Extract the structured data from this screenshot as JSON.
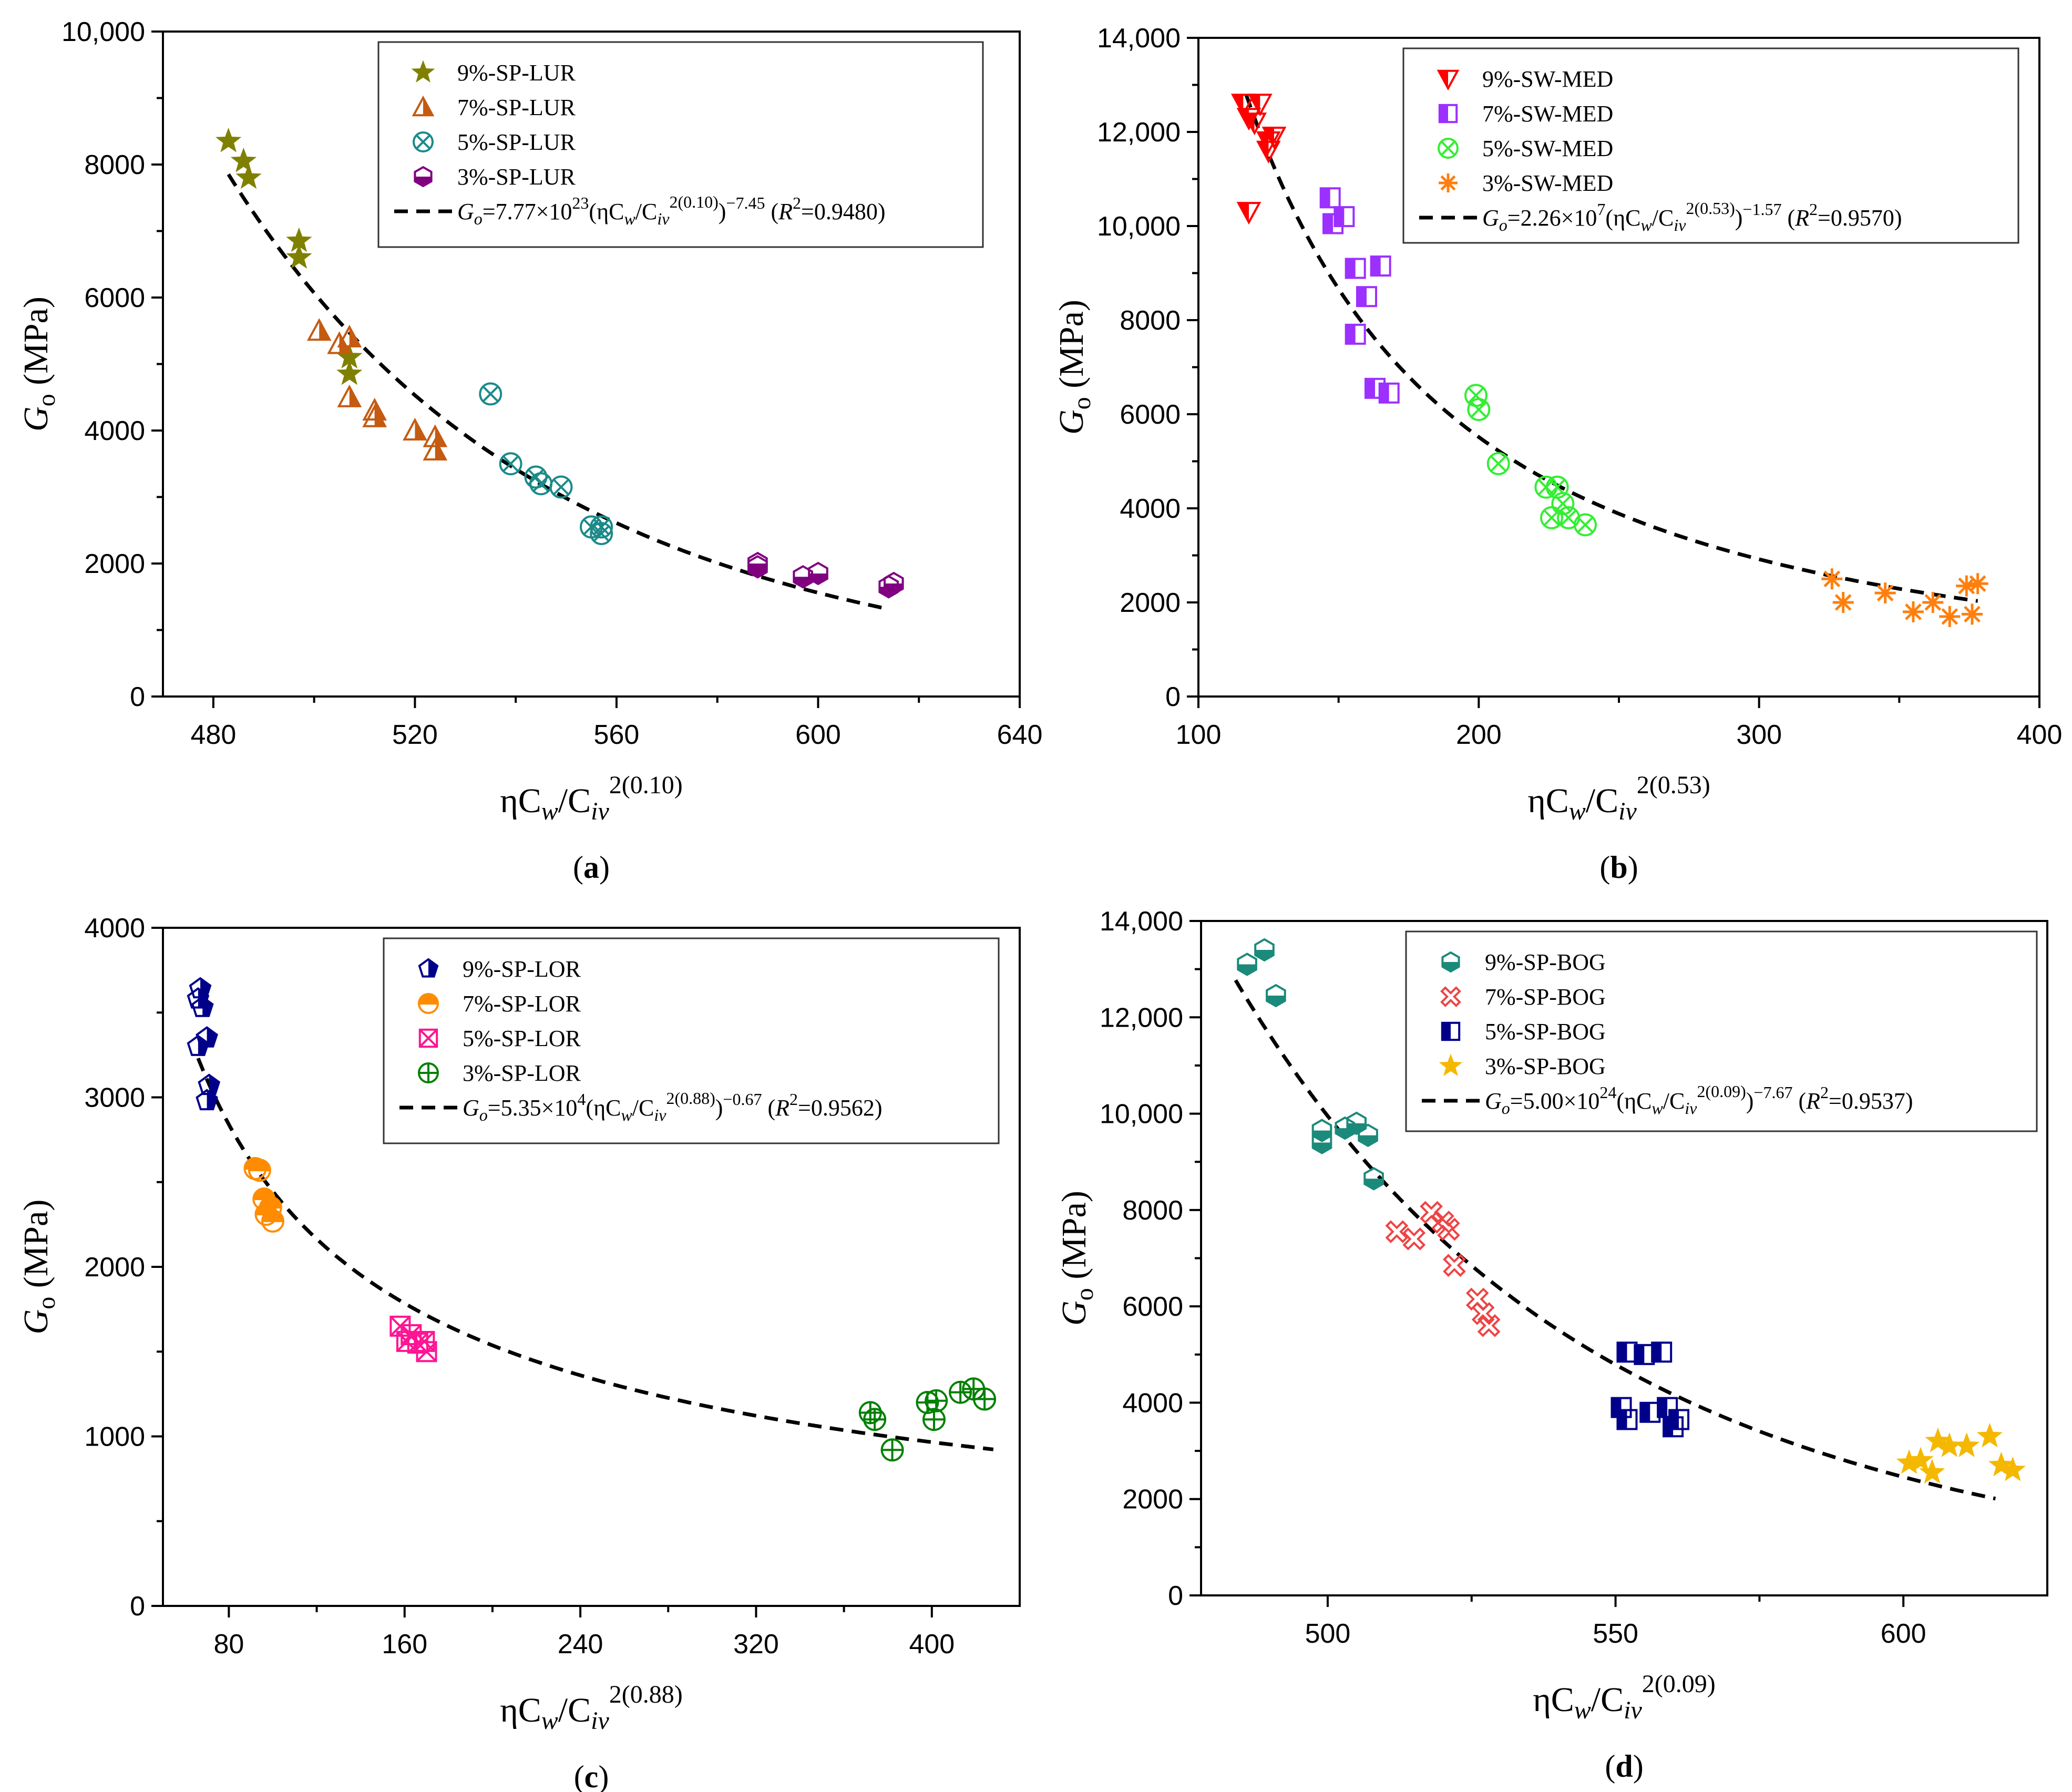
{
  "chart_data": [
    {
      "panel": "(a)",
      "type": "scatter",
      "xlabel": "ηCw/Civ^2(0.10)",
      "ylabel": "Go (MPa)",
      "xlim": [
        470,
        640
      ],
      "ylim": [
        0,
        10000
      ],
      "xticks": [
        480,
        520,
        560,
        600,
        640
      ],
      "xtick_labels": [
        "480",
        "520",
        "560",
        "600",
        "640"
      ],
      "yticks": [
        0,
        2000,
        4000,
        6000,
        8000,
        10000
      ],
      "ytick_labels": [
        "0",
        "2000",
        "4000",
        "6000",
        "8000",
        "10,000"
      ],
      "legend_position": "top-right",
      "fit": {
        "a": 7.77e+23,
        "b": -7.45,
        "x_range": [
          483,
          614
        ],
        "label_a": "7.77×10",
        "label_exp": "23",
        "label_inner": "0.10",
        "label_pow": "−7.45",
        "label_r2": "0.9480"
      },
      "series": [
        {
          "name": "9%-SP-LUR",
          "marker": "star",
          "color": "#808000",
          "points": [
            [
              483,
              8350
            ],
            [
              486,
              8050
            ],
            [
              487,
              7800
            ],
            [
              497,
              6850
            ],
            [
              497,
              6600
            ],
            [
              507,
              5100
            ],
            [
              507,
              4850
            ]
          ]
        },
        {
          "name": "7%-SP-LUR",
          "marker": "triangle-half",
          "color": "#c55a11",
          "points": [
            [
              501,
              5500
            ],
            [
              505,
              5300
            ],
            [
              507,
              5400
            ],
            [
              507,
              4500
            ],
            [
              512,
              4300
            ],
            [
              512,
              4200
            ],
            [
              520,
              4000
            ],
            [
              524,
              3900
            ],
            [
              524,
              3700
            ]
          ]
        },
        {
          "name": "5%-SP-LUR",
          "marker": "circle-x",
          "color": "#1b8a8a",
          "points": [
            [
              535,
              4550
            ],
            [
              539,
              3500
            ],
            [
              544,
              3300
            ],
            [
              545,
              3200
            ],
            [
              549,
              3150
            ],
            [
              555,
              2550
            ],
            [
              557,
              2550
            ],
            [
              557,
              2450
            ]
          ]
        },
        {
          "name": "3%-SP-LUR",
          "marker": "hexagon-half",
          "color": "#800080",
          "points": [
            [
              588,
              2000
            ],
            [
              588,
              1950
            ],
            [
              597,
              1800
            ],
            [
              600,
              1850
            ],
            [
              614,
              1650
            ],
            [
              615,
              1700
            ]
          ]
        }
      ]
    },
    {
      "panel": "(b)",
      "type": "scatter",
      "xlabel": "ηCw/Civ^2(0.53)",
      "ylabel": "Go (MPa)",
      "xlim": [
        100,
        400
      ],
      "ylim": [
        0,
        14000
      ],
      "xticks": [
        100,
        200,
        300,
        400
      ],
      "xtick_labels": [
        "100",
        "200",
        "300",
        "400"
      ],
      "yticks": [
        0,
        2000,
        4000,
        6000,
        8000,
        10000,
        12000,
        14000
      ],
      "ytick_labels": [
        "0",
        "2000",
        "4000",
        "6000",
        "8000",
        "10,000",
        "12,000",
        "14,000"
      ],
      "legend_position": "top-right",
      "fit": {
        "a": 22600000.0,
        "b": -1.57,
        "x_range": [
          117,
          378
        ],
        "label_a": "2.26×10",
        "label_exp": "7",
        "label_inner": "0.53",
        "label_pow": "−1.57",
        "label_r2": "0.9570"
      },
      "series": [
        {
          "name": "9%-SW-MED",
          "marker": "triangle-down-half",
          "color": "#ff0000",
          "points": [
            [
              116,
              12600
            ],
            [
              118,
              12300
            ],
            [
              120,
              12200
            ],
            [
              122,
              12600
            ],
            [
              125,
              11800
            ],
            [
              125,
              11600
            ],
            [
              127,
              11900
            ],
            [
              118,
              10300
            ]
          ]
        },
        {
          "name": "7%-SW-MED",
          "marker": "square-half",
          "color": "#9b30ff",
          "points": [
            [
              147,
              10600
            ],
            [
              148,
              10050
            ],
            [
              152,
              10200
            ],
            [
              156,
              9100
            ],
            [
              160,
              8500
            ],
            [
              165,
              9150
            ],
            [
              156,
              7700
            ],
            [
              163,
              6550
            ],
            [
              168,
              6450
            ]
          ]
        },
        {
          "name": "5%-SW-MED",
          "marker": "circle-x",
          "color": "#33ee33",
          "points": [
            [
              199,
              6400
            ],
            [
              200,
              6100
            ],
            [
              207,
              4950
            ],
            [
              224,
              4450
            ],
            [
              228,
              4450
            ],
            [
              226,
              3800
            ],
            [
              232,
              3800
            ],
            [
              230,
              4100
            ],
            [
              238,
              3650
            ]
          ]
        },
        {
          "name": "3%-SW-MED",
          "marker": "asterisk",
          "color": "#ff7f0e",
          "points": [
            [
              326,
              2500
            ],
            [
              330,
              2000
            ],
            [
              345,
              2200
            ],
            [
              355,
              1800
            ],
            [
              362,
              2000
            ],
            [
              368,
              1700
            ],
            [
              374,
              2350
            ],
            [
              376,
              1750
            ],
            [
              378,
              2400
            ]
          ]
        }
      ]
    },
    {
      "panel": "(c)",
      "type": "scatter",
      "xlabel": "ηCw/Civ^2(0.88)",
      "ylabel": "Go (MPa)",
      "xlim": [
        50,
        440
      ],
      "ylim": [
        0,
        4000
      ],
      "xticks": [
        80,
        160,
        240,
        320,
        400
      ],
      "xtick_labels": [
        "80",
        "160",
        "240",
        "320",
        "400"
      ],
      "yticks": [
        0,
        1000,
        2000,
        3000,
        4000
      ],
      "ytick_labels": [
        "0",
        "1000",
        "2000",
        "3000",
        "4000"
      ],
      "legend_position": "top-right",
      "fit": {
        "a": 53500.0,
        "b": -0.67,
        "x_range": [
          66,
          428
        ],
        "label_a": "5.35×10",
        "label_exp": "4",
        "label_inner": "0.88",
        "label_pow": "−0.67",
        "label_r2": "0.9562"
      },
      "series": [
        {
          "name": "9%-SP-LOR",
          "marker": "pentagon-half",
          "color": "#00008b",
          "points": [
            [
              66,
              3580
            ],
            [
              67,
              3640
            ],
            [
              68,
              3530
            ],
            [
              70,
              3350
            ],
            [
              66,
              3300
            ],
            [
              71,
              3070
            ],
            [
              70,
              2980
            ]
          ]
        },
        {
          "name": "7%-SP-LOR",
          "marker": "circle-half",
          "color": "#ff8c00",
          "points": [
            [
              92,
              2580
            ],
            [
              94,
              2570
            ],
            [
              96,
              2400
            ],
            [
              97,
              2310
            ],
            [
              99,
              2350
            ],
            [
              100,
              2270
            ]
          ]
        },
        {
          "name": "5%-SP-LOR",
          "marker": "square-x",
          "color": "#ff1493",
          "points": [
            [
              158,
              1650
            ],
            [
              161,
              1560
            ],
            [
              163,
              1600
            ],
            [
              166,
              1550
            ],
            [
              169,
              1560
            ],
            [
              170,
              1500
            ]
          ]
        },
        {
          "name": "3%-SP-LOR",
          "marker": "circle-plus",
          "color": "#008000",
          "points": [
            [
              372,
              1140
            ],
            [
              374,
              1100
            ],
            [
              382,
              920
            ],
            [
              398,
              1200
            ],
            [
              401,
              1100
            ],
            [
              402,
              1210
            ],
            [
              413,
              1260
            ],
            [
              419,
              1280
            ],
            [
              424,
              1220
            ]
          ]
        }
      ]
    },
    {
      "panel": "(d)",
      "type": "scatter",
      "xlabel": "ηCw/Civ^2(0.09)",
      "ylabel": "Go (MPa)",
      "xlim": [
        478,
        625
      ],
      "ylim": [
        0,
        14000
      ],
      "xticks": [
        500,
        550,
        600
      ],
      "xtick_labels": [
        "500",
        "550",
        "600"
      ],
      "yticks": [
        0,
        2000,
        4000,
        6000,
        8000,
        10000,
        12000,
        14000
      ],
      "ytick_labels": [
        "0",
        "2000",
        "4000",
        "6000",
        "8000",
        "10,000",
        "12,000",
        "14,000"
      ],
      "legend_position": "top-right",
      "fit": {
        "a": 5e+24,
        "b": -7.67,
        "x_range": [
          484,
          616
        ],
        "label_a": "5.00×10",
        "label_exp": "24",
        "label_inner": "0.09",
        "label_pow": "−7.67",
        "label_r2": "0.9537"
      },
      "series": [
        {
          "name": "9%-SP-BOG",
          "marker": "hexagon-half",
          "color": "#1b8a7a",
          "points": [
            [
              486,
              13100
            ],
            [
              489,
              13400
            ],
            [
              491,
              12450
            ],
            [
              499,
              9400
            ],
            [
              499,
              9650
            ],
            [
              503,
              9700
            ],
            [
              505,
              9800
            ],
            [
              507,
              9550
            ],
            [
              508,
              8650
            ]
          ]
        },
        {
          "name": "7%-SP-BOG",
          "marker": "cross-x",
          "color": "#ee4444",
          "points": [
            [
              512,
              7550
            ],
            [
              515,
              7400
            ],
            [
              518,
              7950
            ],
            [
              520,
              7750
            ],
            [
              521,
              7600
            ],
            [
              522,
              6850
            ],
            [
              526,
              6150
            ],
            [
              527,
              5850
            ],
            [
              528,
              5600
            ]
          ]
        },
        {
          "name": "5%-SP-BOG",
          "marker": "square-half",
          "color": "#00008b",
          "points": [
            [
              551,
              3900
            ],
            [
              552,
              3650
            ],
            [
              552,
              5050
            ],
            [
              555,
              5000
            ],
            [
              556,
              3800
            ],
            [
              558,
              5050
            ],
            [
              559,
              3900
            ],
            [
              560,
              3500
            ],
            [
              561,
              3650
            ]
          ]
        },
        {
          "name": "3%-SP-BOG",
          "marker": "star",
          "color": "#f5b800",
          "points": [
            [
              601,
              2750
            ],
            [
              603,
              2800
            ],
            [
              605,
              2550
            ],
            [
              606,
              3200
            ],
            [
              608,
              3100
            ],
            [
              611,
              3100
            ],
            [
              615,
              3300
            ],
            [
              617,
              2700
            ],
            [
              619,
              2600
            ]
          ]
        }
      ]
    }
  ]
}
